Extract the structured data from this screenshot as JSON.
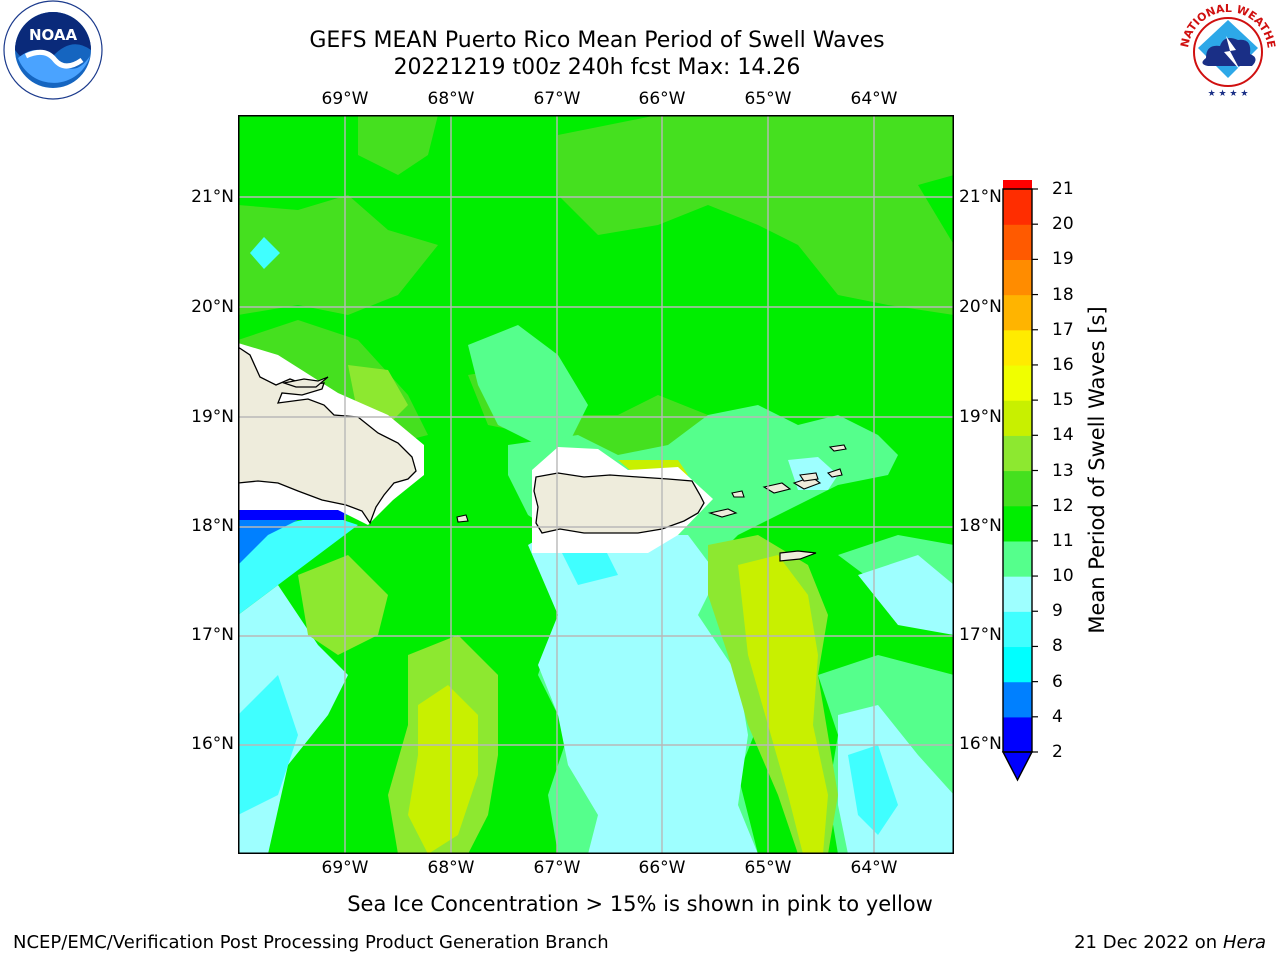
{
  "title": {
    "line1": "GEFS MEAN Puerto Rico Mean Period of Swell Waves",
    "line2": "20221219 t00z 240h fcst   Max: 14.26"
  },
  "map": {
    "lon_labels": [
      "69°W",
      "68°W",
      "67°W",
      "66°W",
      "65°W",
      "64°W"
    ],
    "lat_labels": [
      "21°N",
      "20°N",
      "19°N",
      "18°N",
      "17°N",
      "16°N"
    ],
    "land_color": "#eeecdc",
    "grid_color": "#b8b8b8"
  },
  "colorbar": {
    "label": "Mean Period of Swell Waves [s]",
    "ticks": [
      "21",
      "20",
      "19",
      "18",
      "17",
      "16",
      "15",
      "14",
      "13",
      "12",
      "11",
      "10",
      "9",
      "8",
      "6",
      "4",
      "2"
    ],
    "colors": [
      "#0000ff",
      "#0080ff",
      "#00ffff",
      "#40ffff",
      "#9effff",
      "#55ff8c",
      "#00ee00",
      "#45e01f",
      "#8de830",
      "#c8f000",
      "#f0ff00",
      "#ffeb00",
      "#ffb400",
      "#ff8c00",
      "#ff5a00",
      "#ff2d00",
      "#ff0000"
    ]
  },
  "note": "Sea Ice Concentration > 15% is shown in pink to yellow",
  "footer": {
    "left": "NCEP/EMC/Verification Post Processing Product Generation Branch",
    "date": "21 Dec 2022 on",
    "machine": "Hera"
  },
  "logos": {
    "noaa": "NOAA",
    "nws_ring": "NATIONAL WEATHER SERVICE"
  }
}
